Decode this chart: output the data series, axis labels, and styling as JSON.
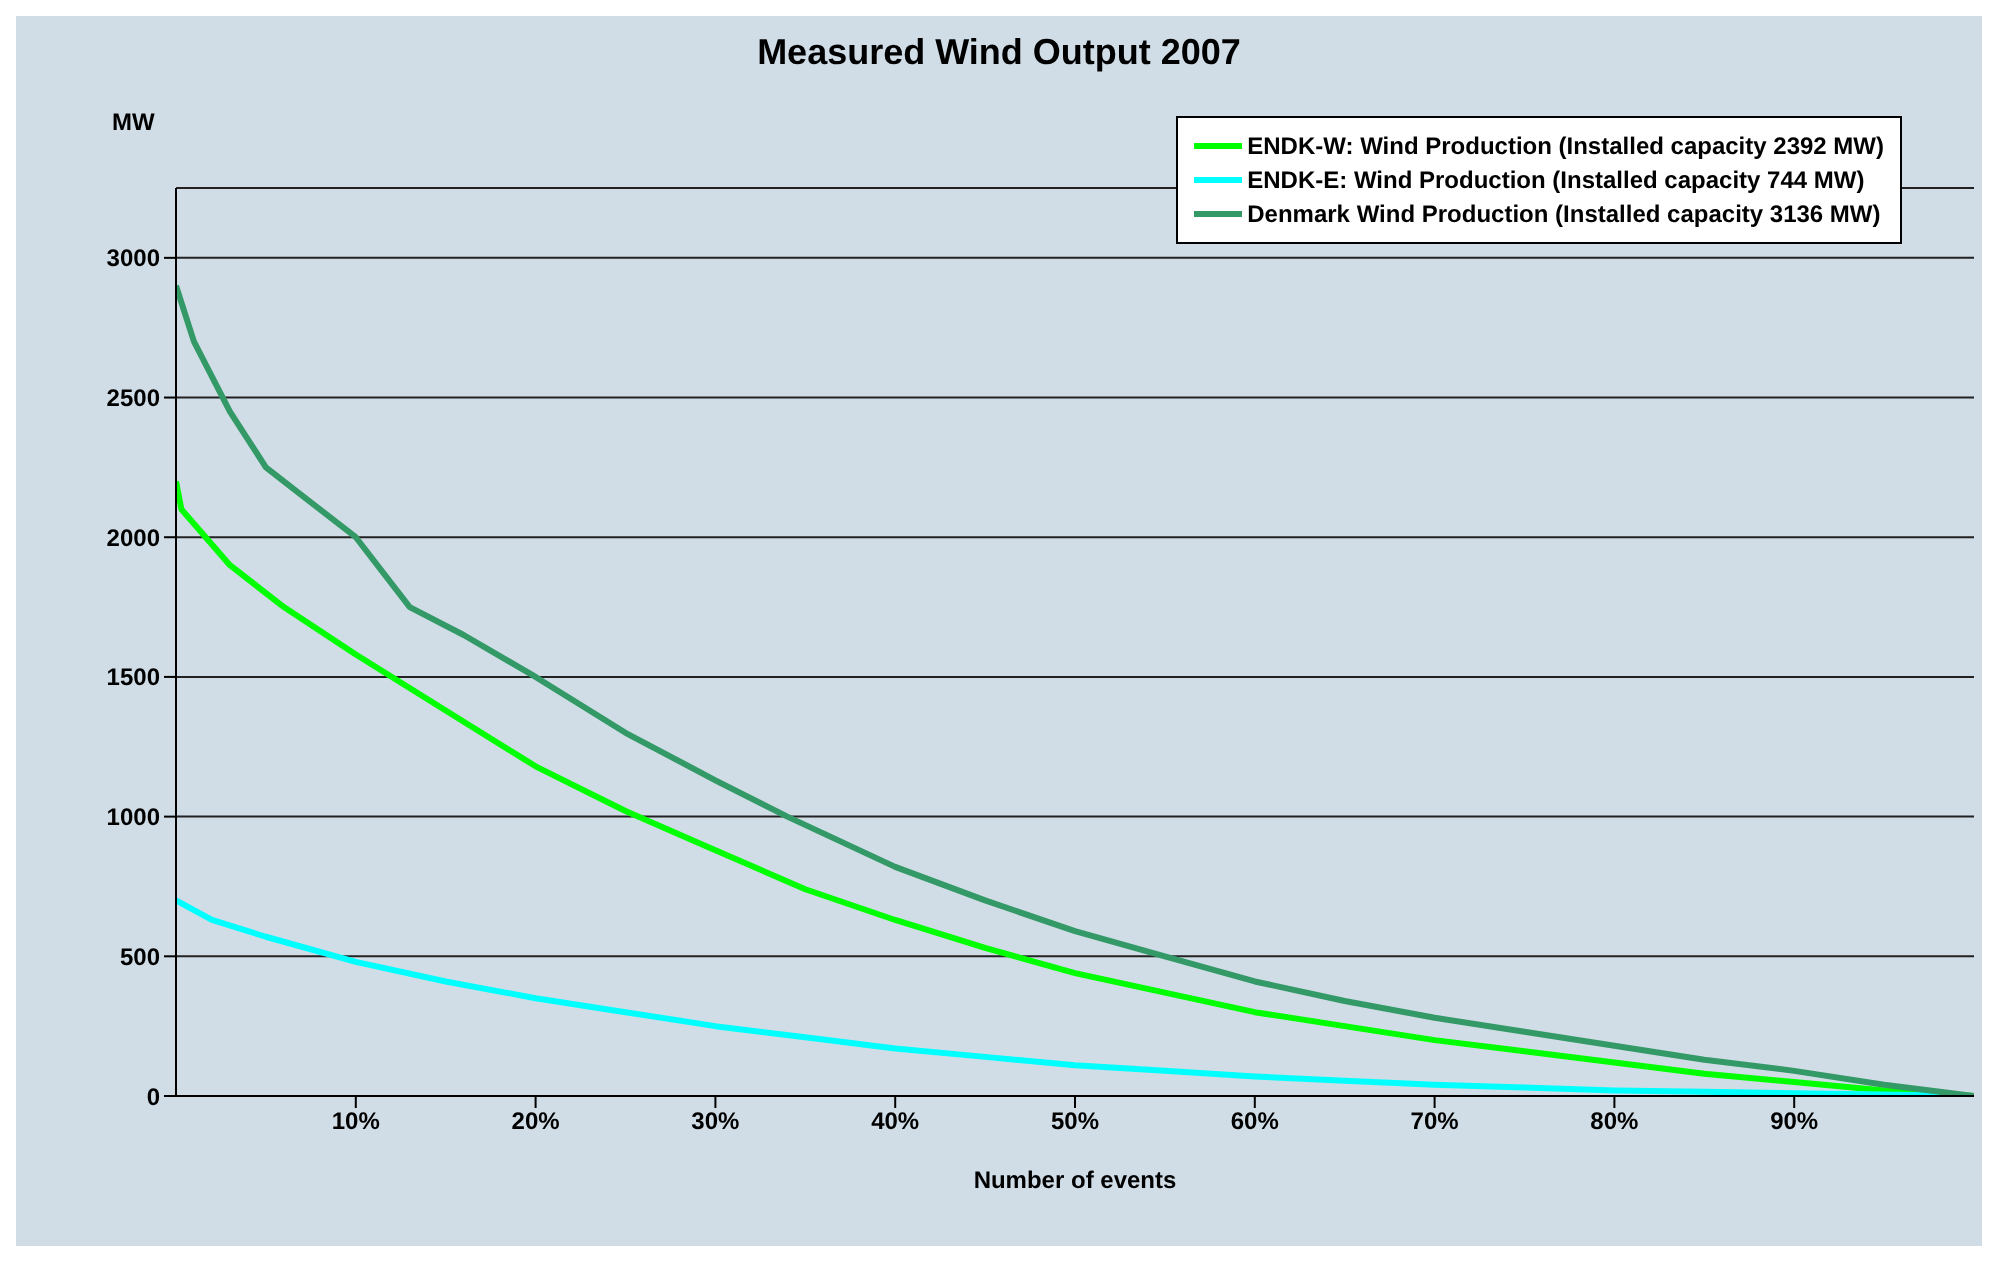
{
  "chart_data": {
    "type": "line",
    "title": "Measured Wind Output 2007",
    "xlabel": "Number of events",
    "ylabel": "MW",
    "xlim": [
      0,
      100
    ],
    "xticks": [
      {
        "value": 10,
        "label": "10%"
      },
      {
        "value": 20,
        "label": "20%"
      },
      {
        "value": 30,
        "label": "30%"
      },
      {
        "value": 40,
        "label": "40%"
      },
      {
        "value": 50,
        "label": "50%"
      },
      {
        "value": 60,
        "label": "60%"
      },
      {
        "value": 70,
        "label": "70%"
      },
      {
        "value": 80,
        "label": "80%"
      },
      {
        "value": 90,
        "label": "90%"
      }
    ],
    "ylim": [
      0,
      3250
    ],
    "yticks": [
      0,
      500,
      1000,
      1500,
      2000,
      2500,
      3000
    ],
    "grid": "y",
    "legend": "top right",
    "marker": "none",
    "line_style": "solid",
    "series": [
      {
        "name": "ENDK-W: Wind Production (Installed capacity 2392 MW)",
        "color": "#00ff00",
        "x": [
          0,
          0.3,
          3,
          6,
          10,
          15,
          20,
          25,
          30,
          35,
          40,
          45,
          50,
          55,
          60,
          65,
          70,
          75,
          80,
          85,
          90,
          95,
          100
        ],
        "values": [
          2200,
          2100,
          1900,
          1750,
          1580,
          1380,
          1180,
          1020,
          880,
          740,
          630,
          530,
          440,
          370,
          300,
          250,
          200,
          160,
          120,
          80,
          50,
          20,
          0
        ]
      },
      {
        "name": "ENDK-E: Wind Production (Installed capacity 744 MW)",
        "color": "#00ffff",
        "x": [
          0,
          2,
          5,
          10,
          15,
          20,
          25,
          30,
          35,
          40,
          45,
          50,
          55,
          60,
          65,
          70,
          75,
          80,
          85,
          90,
          95,
          100
        ],
        "values": [
          700,
          630,
          570,
          480,
          410,
          350,
          300,
          250,
          210,
          170,
          140,
          110,
          90,
          70,
          55,
          40,
          30,
          20,
          15,
          10,
          5,
          0
        ]
      },
      {
        "name": "Denmark Wind Production (Installed capacity 3136 MW)",
        "color": "#339966",
        "x": [
          0,
          1,
          3,
          5,
          7,
          10,
          13,
          16,
          20,
          25,
          30,
          34,
          40,
          45,
          50,
          55,
          60,
          65,
          70,
          75,
          80,
          85,
          90,
          95,
          100
        ],
        "values": [
          2900,
          2700,
          2450,
          2250,
          2150,
          2000,
          1750,
          1650,
          1500,
          1300,
          1130,
          1000,
          820,
          700,
          590,
          500,
          410,
          340,
          280,
          230,
          180,
          130,
          90,
          40,
          0
        ]
      }
    ]
  }
}
